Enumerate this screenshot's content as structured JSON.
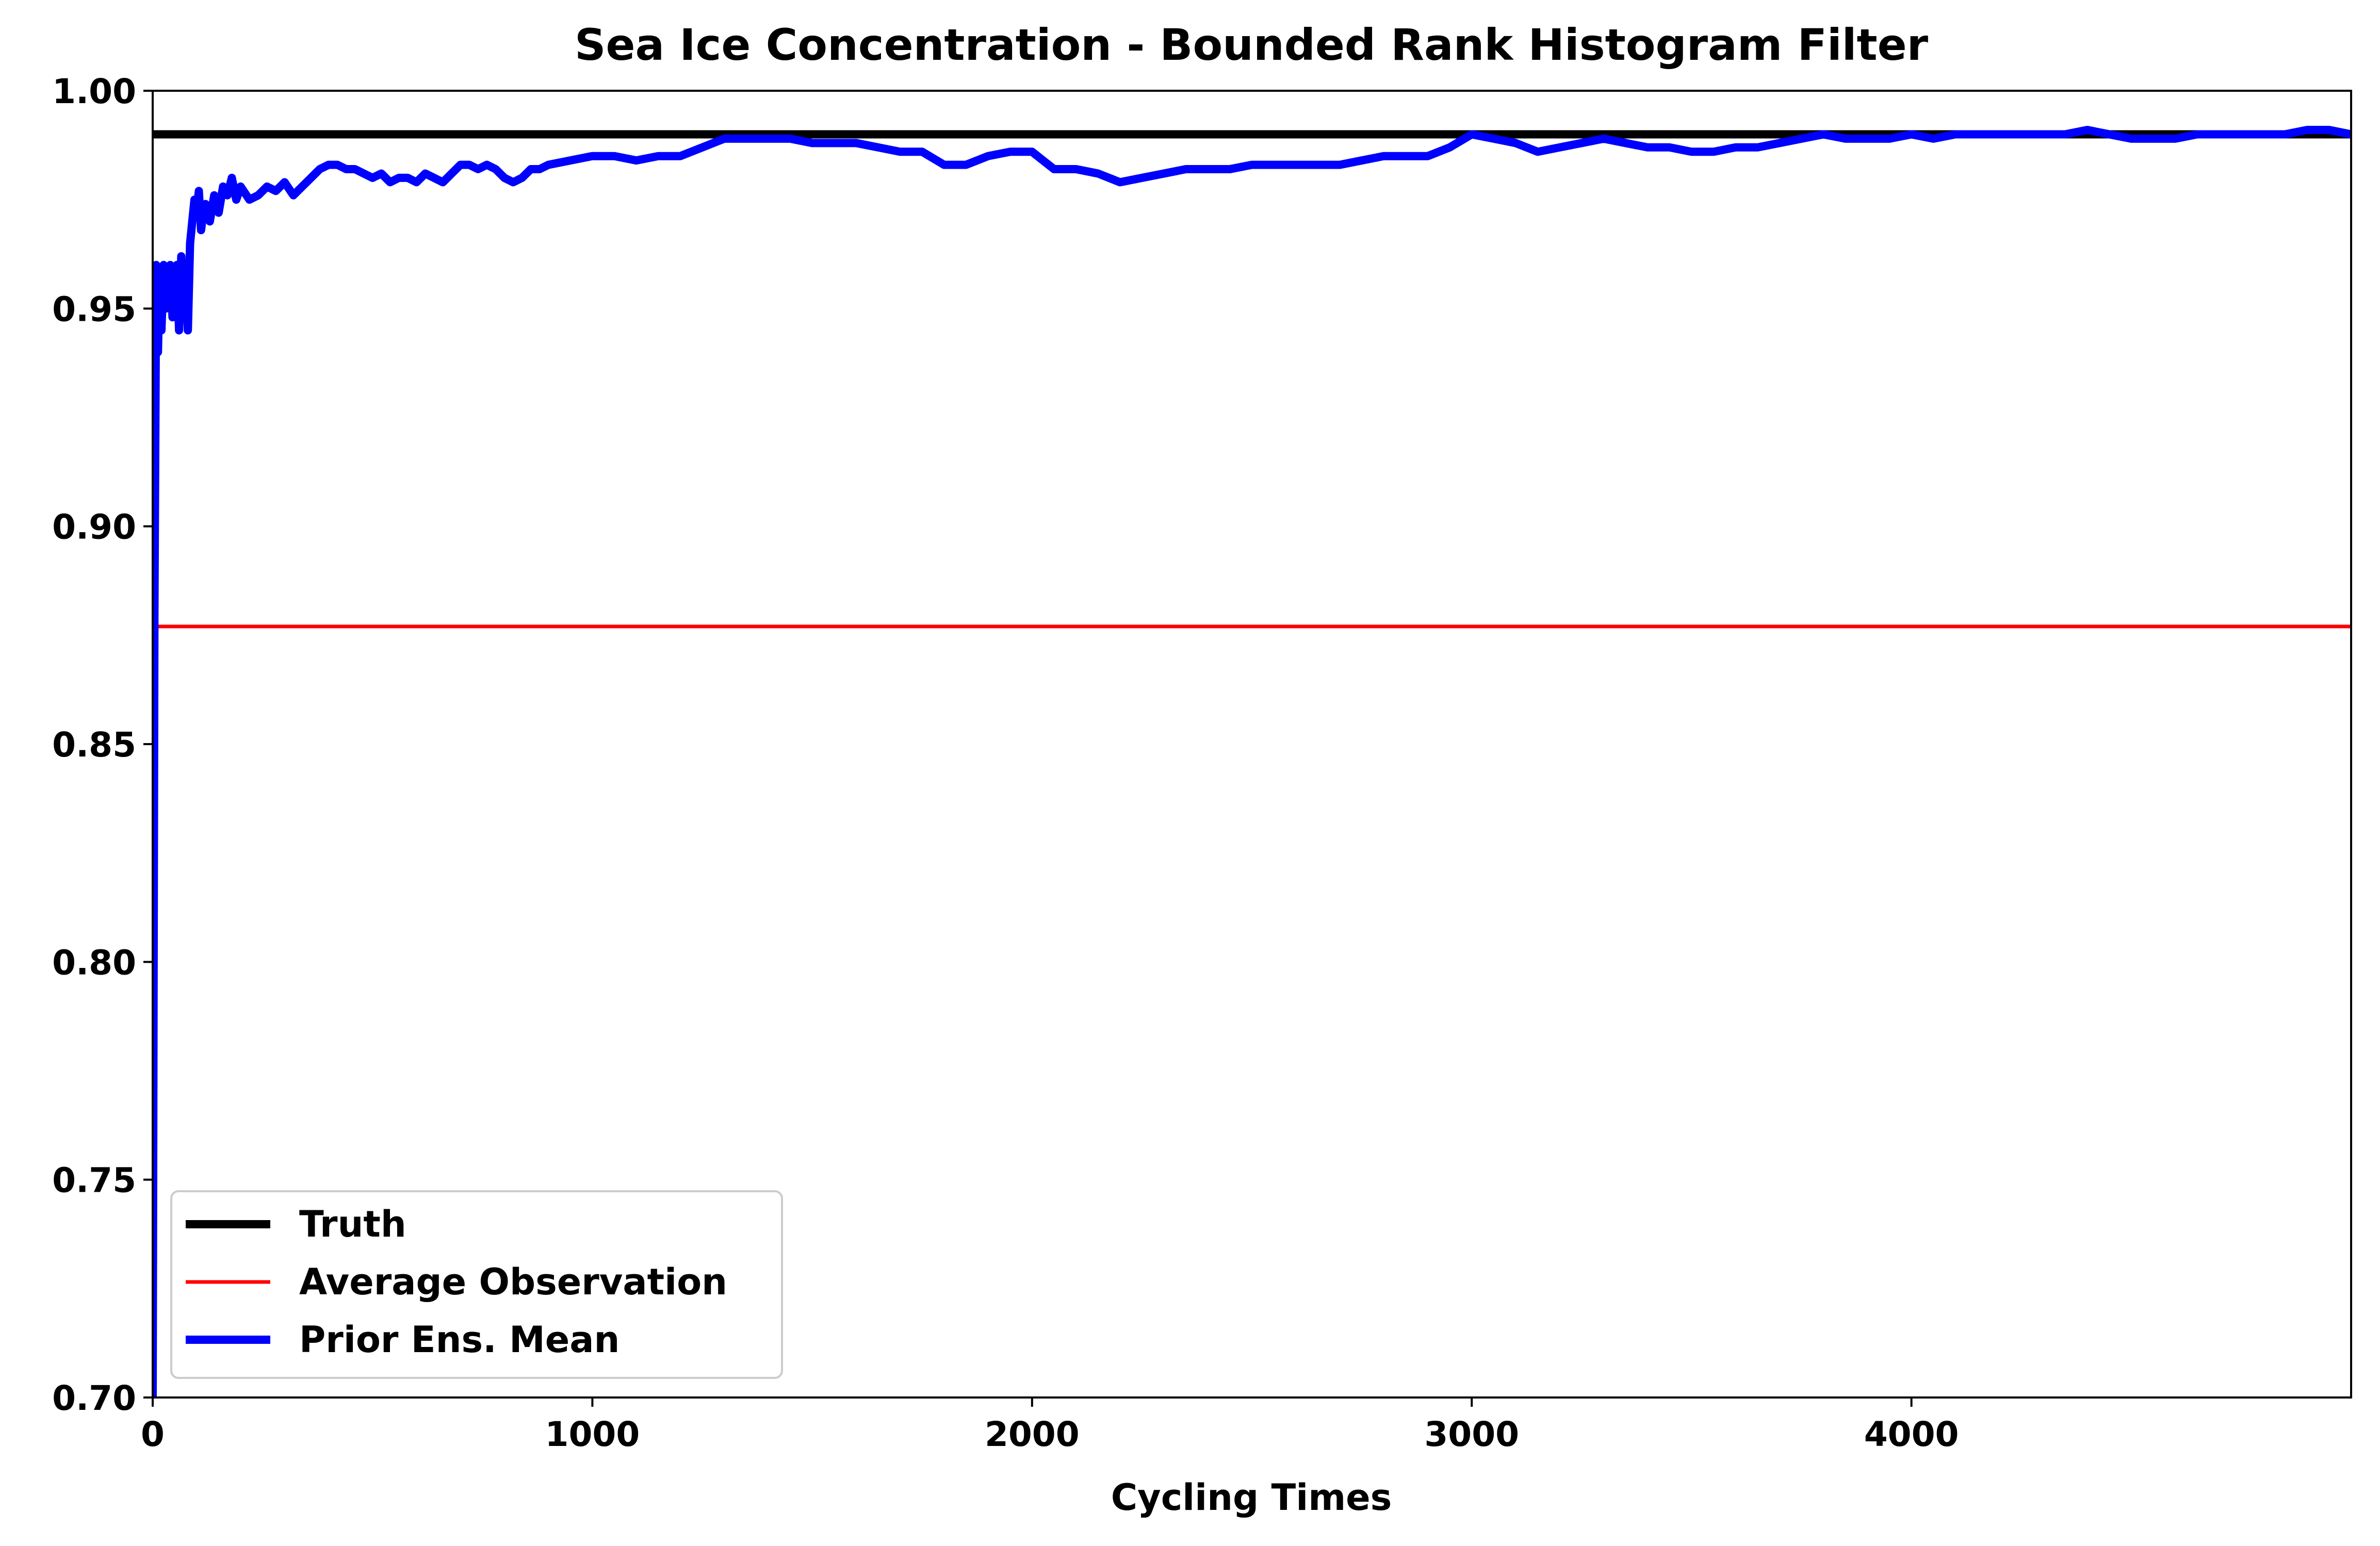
{
  "chart_data": {
    "type": "line",
    "title": "Sea Ice Concentration - Bounded Rank Histogram Filter",
    "xlabel": "Cycling Times",
    "ylabel": "",
    "xlim": [
      0,
      5000
    ],
    "ylim": [
      0.7,
      1.0
    ],
    "x_ticks": [
      {
        "value": 0,
        "label": "0"
      },
      {
        "value": 1000,
        "label": "1000"
      },
      {
        "value": 2000,
        "label": "2000"
      },
      {
        "value": 3000,
        "label": "3000"
      },
      {
        "value": 4000,
        "label": "4000"
      }
    ],
    "y_ticks": [
      {
        "value": 0.7,
        "label": "0.70"
      },
      {
        "value": 0.75,
        "label": "0.75"
      },
      {
        "value": 0.8,
        "label": "0.80"
      },
      {
        "value": 0.85,
        "label": "0.85"
      },
      {
        "value": 0.9,
        "label": "0.90"
      },
      {
        "value": 0.95,
        "label": "0.95"
      },
      {
        "value": 1.0,
        "label": "1.00"
      }
    ],
    "grid": false,
    "legend_position": "lower-left",
    "series": [
      {
        "name": "Truth",
        "color": "#000000",
        "x": [
          0,
          5000
        ],
        "y": [
          0.99,
          0.99
        ]
      },
      {
        "name": "Average Observation",
        "color": "#ff0000",
        "x": [
          0,
          5000
        ],
        "y": [
          0.877,
          0.877
        ]
      },
      {
        "name": "Prior Ens. Mean",
        "color": "#0000ff",
        "x": [
          0,
          4,
          8,
          12,
          16,
          20,
          25,
          30,
          35,
          40,
          45,
          50,
          55,
          60,
          65,
          70,
          75,
          80,
          85,
          90,
          95,
          100,
          105,
          110,
          115,
          120,
          130,
          140,
          150,
          160,
          170,
          180,
          190,
          200,
          220,
          240,
          260,
          280,
          300,
          320,
          340,
          360,
          380,
          400,
          420,
          440,
          460,
          480,
          500,
          520,
          540,
          560,
          580,
          600,
          620,
          640,
          660,
          680,
          700,
          720,
          740,
          760,
          780,
          800,
          820,
          840,
          860,
          880,
          900,
          950,
          1000,
          1050,
          1100,
          1150,
          1200,
          1250,
          1300,
          1350,
          1400,
          1450,
          1500,
          1550,
          1600,
          1650,
          1700,
          1750,
          1800,
          1850,
          1900,
          1950,
          2000,
          2050,
          2100,
          2150,
          2200,
          2250,
          2300,
          2350,
          2400,
          2450,
          2500,
          2550,
          2600,
          2650,
          2700,
          2750,
          2800,
          2850,
          2900,
          2950,
          3000,
          3050,
          3100,
          3150,
          3200,
          3250,
          3300,
          3350,
          3400,
          3450,
          3500,
          3550,
          3600,
          3650,
          3700,
          3750,
          3800,
          3850,
          3900,
          3950,
          4000,
          4050,
          4100,
          4150,
          4200,
          4250,
          4300,
          4350,
          4400,
          4450,
          4500,
          4550,
          4600,
          4650,
          4700,
          4750,
          4800,
          4850,
          4900,
          4950,
          5000
        ],
        "y": [
          0.7,
          0.88,
          0.96,
          0.94,
          0.958,
          0.945,
          0.96,
          0.95,
          0.955,
          0.96,
          0.948,
          0.958,
          0.96,
          0.945,
          0.962,
          0.95,
          0.958,
          0.945,
          0.965,
          0.97,
          0.975,
          0.972,
          0.977,
          0.968,
          0.972,
          0.974,
          0.97,
          0.976,
          0.972,
          0.978,
          0.976,
          0.98,
          0.975,
          0.978,
          0.975,
          0.976,
          0.978,
          0.977,
          0.979,
          0.976,
          0.978,
          0.98,
          0.982,
          0.983,
          0.983,
          0.982,
          0.982,
          0.981,
          0.98,
          0.981,
          0.979,
          0.98,
          0.98,
          0.979,
          0.981,
          0.98,
          0.979,
          0.981,
          0.983,
          0.983,
          0.982,
          0.983,
          0.982,
          0.98,
          0.979,
          0.98,
          0.982,
          0.982,
          0.983,
          0.984,
          0.985,
          0.985,
          0.984,
          0.985,
          0.985,
          0.987,
          0.989,
          0.989,
          0.989,
          0.989,
          0.988,
          0.988,
          0.988,
          0.987,
          0.986,
          0.986,
          0.983,
          0.983,
          0.985,
          0.986,
          0.986,
          0.982,
          0.982,
          0.981,
          0.979,
          0.98,
          0.981,
          0.982,
          0.982,
          0.982,
          0.983,
          0.983,
          0.983,
          0.983,
          0.983,
          0.984,
          0.985,
          0.985,
          0.985,
          0.987,
          0.99,
          0.989,
          0.988,
          0.986,
          0.987,
          0.988,
          0.989,
          0.988,
          0.987,
          0.987,
          0.986,
          0.986,
          0.987,
          0.987,
          0.988,
          0.989,
          0.99,
          0.989,
          0.989,
          0.989,
          0.99,
          0.989,
          0.99,
          0.99,
          0.99,
          0.99,
          0.99,
          0.99,
          0.991,
          0.99,
          0.989,
          0.989,
          0.989,
          0.99,
          0.99,
          0.99,
          0.99,
          0.99,
          0.991,
          0.991,
          0.99
        ]
      }
    ]
  }
}
